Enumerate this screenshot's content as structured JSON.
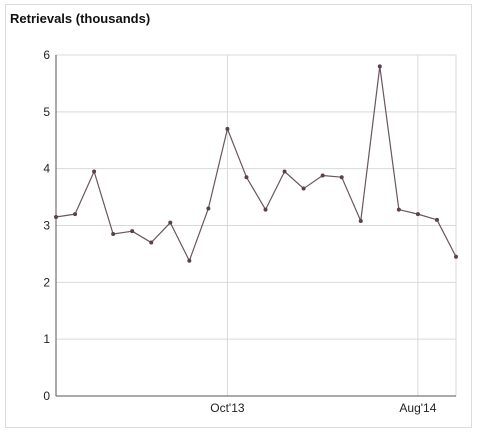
{
  "chart_data": {
    "type": "line",
    "title": "Retrievals (thousands)",
    "xlabel": "",
    "ylabel": "",
    "ylim": [
      0,
      6
    ],
    "yticks": [
      0,
      1,
      2,
      3,
      4,
      5,
      6
    ],
    "xticks": [
      {
        "label": "Oct'13",
        "x": 9
      },
      {
        "label": "Aug'14",
        "x": 19
      }
    ],
    "grid": true,
    "x": [
      0,
      1,
      2,
      3,
      4,
      5,
      6,
      7,
      8,
      9,
      10,
      11,
      12,
      13,
      14,
      15,
      16,
      17,
      18,
      19,
      20,
      21
    ],
    "series": [
      {
        "values": [
          3.15,
          3.2,
          3.95,
          2.85,
          2.9,
          2.7,
          3.05,
          2.38,
          3.3,
          4.7,
          3.85,
          3.28,
          3.95,
          3.65,
          3.88,
          3.85,
          3.08,
          5.8,
          3.28,
          3.2,
          3.1,
          2.45
        ]
      }
    ],
    "colors": {
      "line": "#6a5560",
      "marker": "#5a4050",
      "grid": "#d9d9d9",
      "axis": "#555555",
      "tick_text": "#222222"
    }
  }
}
